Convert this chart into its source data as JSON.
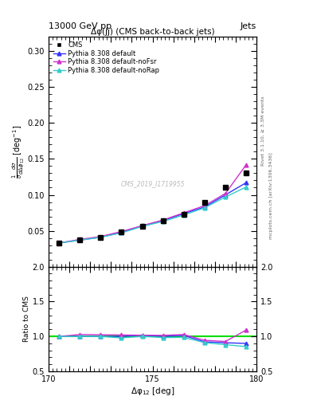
{
  "title_left": "13000 GeV pp",
  "title_right": "Jets",
  "plot_title": "Δφ(jj) (CMS back-to-back jets)",
  "xlabel": "Δφ$_{12}$ [deg]",
  "ylabel_main": "$\\frac{1}{\\sigma}\\frac{d\\sigma}{d\\Delta\\phi_{12}}$ [deg$^{-1}$]",
  "ylabel_ratio": "Ratio to CMS",
  "right_label_top": "Rivet 3.1.10, ≥ 3.3M events",
  "right_label_bot": "mcplots.cern.ch [arXiv:1306.3436]",
  "watermark": "CMS_2019_I1719955",
  "xlim": [
    170,
    180
  ],
  "ylim_main": [
    0.0,
    0.32
  ],
  "ylim_ratio": [
    0.5,
    2.0
  ],
  "yticks_main": [
    0.05,
    0.1,
    0.15,
    0.2,
    0.25,
    0.3
  ],
  "yticks_ratio": [
    0.5,
    1.0,
    1.5,
    2.0
  ],
  "xticks": [
    170,
    171,
    172,
    173,
    174,
    175,
    176,
    177,
    178,
    179,
    180
  ],
  "xtick_labels": [
    "170",
    "",
    "",
    "",
    "",
    "175",
    "",
    "",
    "",
    "",
    "180"
  ],
  "x_data": [
    170.5,
    171.5,
    172.5,
    173.5,
    174.5,
    175.5,
    176.5,
    177.5,
    178.5,
    179.5
  ],
  "cms_y": [
    0.033,
    0.037,
    0.041,
    0.048,
    0.056,
    0.064,
    0.073,
    0.09,
    0.11,
    0.13
  ],
  "pythia_default_y": [
    0.033,
    0.037,
    0.041,
    0.048,
    0.057,
    0.064,
    0.074,
    0.083,
    0.1,
    0.117
  ],
  "pythia_nofsr_y": [
    0.033,
    0.038,
    0.042,
    0.049,
    0.057,
    0.065,
    0.075,
    0.085,
    0.102,
    0.142
  ],
  "pythia_norap_y": [
    0.033,
    0.037,
    0.041,
    0.047,
    0.056,
    0.063,
    0.072,
    0.082,
    0.097,
    0.111
  ],
  "color_cms": "#000000",
  "color_default": "#3333ff",
  "color_nofsr": "#cc33cc",
  "color_norap": "#33cccc",
  "color_ref_line": "#00dd00",
  "legend_labels": [
    "CMS",
    "Pythia 8.308 default",
    "Pythia 8.308 default-noFsr",
    "Pythia 8.308 default-noRap"
  ],
  "bg_color": "#ffffff"
}
